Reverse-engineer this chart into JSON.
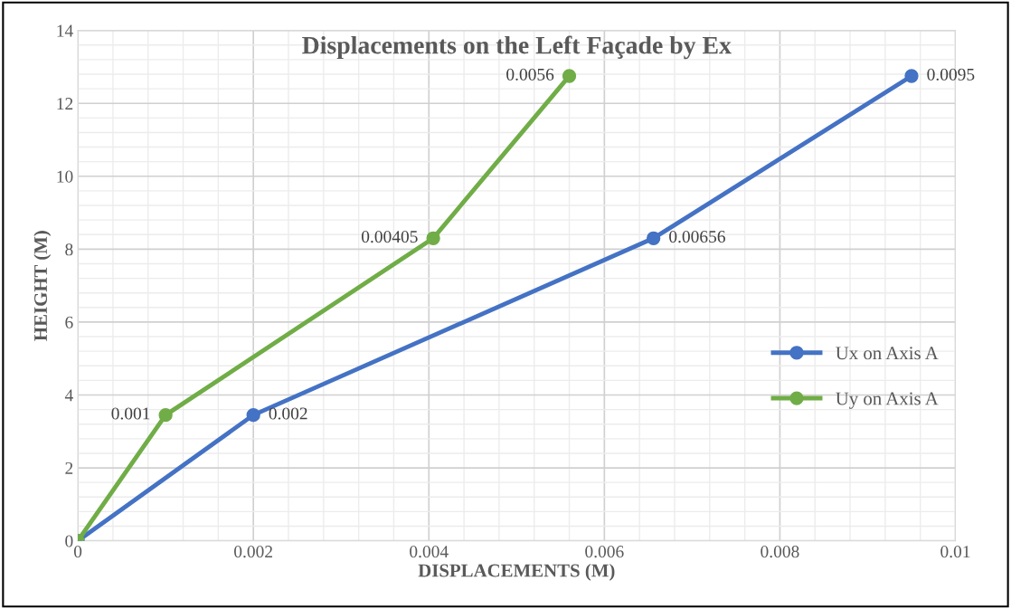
{
  "chart_data": {
    "type": "line",
    "title": "Displacements on the Left Façade by Ex",
    "xlabel": "DISPLACEMENTS (M)",
    "ylabel": "HEIGHT (M)",
    "xlim": [
      0,
      0.01
    ],
    "xticks": [
      0,
      0.002,
      0.004,
      0.006,
      0.008,
      0.01
    ],
    "ylim": [
      0,
      14
    ],
    "yticks": [
      0,
      2,
      4,
      6,
      8,
      10,
      12,
      14
    ],
    "grid": true,
    "legend": "right",
    "marker": "circle",
    "line_style": "solid",
    "series": [
      {
        "name": "Ux on Axis A",
        "color": "#4472c4",
        "x": [
          0,
          0.002,
          0.00656,
          0.0095
        ],
        "values": [
          0,
          3.45,
          8.3,
          12.75
        ]
      },
      {
        "name": "Uy on Axis A",
        "color": "#70ad47",
        "x": [
          0,
          0.001,
          0.00405,
          0.0056
        ],
        "values": [
          0,
          3.45,
          8.3,
          12.75
        ]
      }
    ],
    "annotations": [
      {
        "text": "0.002",
        "x": 0.002,
        "y": 3.45
      },
      {
        "text": "0.00656",
        "x": 0.00656,
        "y": 8.3
      },
      {
        "text": "0.0095",
        "x": 0.0095,
        "y": 12.75
      },
      {
        "text": "0.001",
        "x": 0.001,
        "y": 3.45
      },
      {
        "text": "0.00405",
        "x": 0.00405,
        "y": 8.3
      },
      {
        "text": "0.0056",
        "x": 0.0056,
        "y": 12.75
      }
    ]
  }
}
